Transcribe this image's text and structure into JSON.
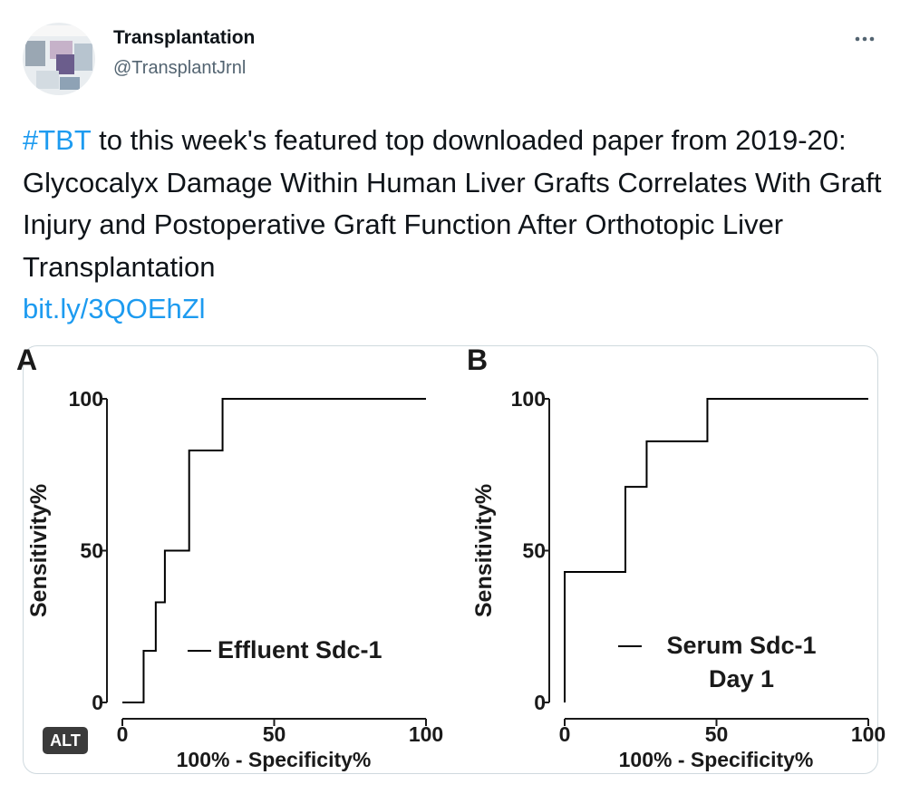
{
  "account": {
    "name": "Transplantation",
    "handle": "@TransplantJrnl"
  },
  "tweet": {
    "hashtag": "#TBT",
    "text": "to this week's featured top downloaded paper from 2019-20: Glycocalyx Damage Within Human Liver Grafts Correlates With Graft Injury and Postoperative Graft Function After Orthotopic Liver Transplantation",
    "link": "bit.ly/3QOEhZl"
  },
  "media_badge": "ALT",
  "chart_data": [
    {
      "type": "line",
      "panel": "A",
      "xlabel": "100% - Specificity%",
      "ylabel": "Sensitivity%",
      "xlim": [
        0,
        100
      ],
      "ylim": [
        0,
        100
      ],
      "xticks": [
        0,
        50,
        100
      ],
      "yticks": [
        0,
        50,
        100
      ],
      "series": [
        {
          "name": "Effluent Sdc-1",
          "color": "#000000",
          "x": [
            0,
            7,
            7,
            11,
            11,
            14,
            14,
            22,
            22,
            33,
            33,
            100
          ],
          "values": [
            0,
            0,
            17,
            17,
            33,
            33,
            50,
            50,
            83,
            83,
            100,
            100
          ]
        }
      ]
    },
    {
      "type": "line",
      "panel": "B",
      "xlabel": "100% - Specificity%",
      "ylabel": "Sensitivity%",
      "xlim": [
        0,
        100
      ],
      "ylim": [
        0,
        100
      ],
      "xticks": [
        0,
        50,
        100
      ],
      "yticks": [
        0,
        50,
        100
      ],
      "series": [
        {
          "name": "Serum Sdc-1 Day 1",
          "color": "#000000",
          "x": [
            0,
            0,
            20,
            20,
            27,
            27,
            47,
            47,
            100
          ],
          "values": [
            0,
            43,
            43,
            71,
            71,
            86,
            86,
            100,
            100
          ]
        }
      ]
    }
  ]
}
